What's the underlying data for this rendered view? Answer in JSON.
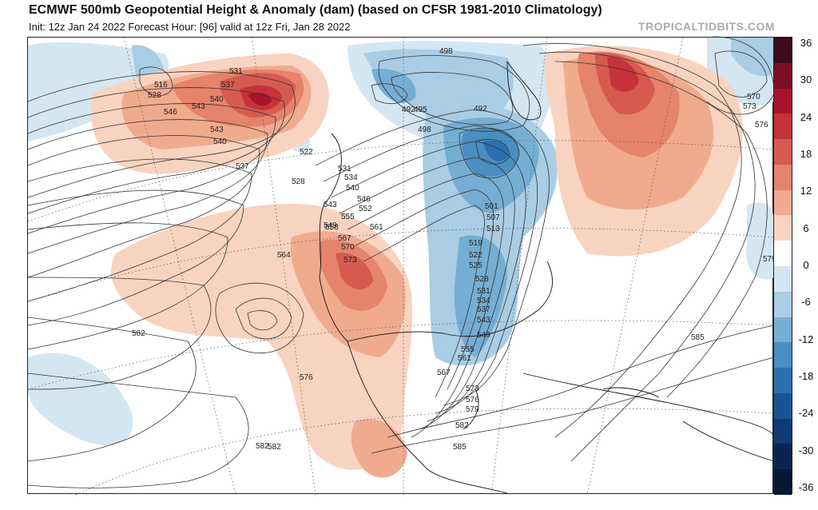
{
  "header": {
    "title": "ECMWF 500mb Geopotential Height & Anomaly (dam) (based on CFSR 1981-2010 Climatology)",
    "subtitle": "Init: 12z Jan 24 2022   Forecast Hour: [96]   valid at 12z Fri, Jan 28 2022",
    "brand": "TROPICALTIDBITS.COM"
  },
  "colorbar": {
    "labels": [
      "36",
      "30",
      "24",
      "18",
      "12",
      "6",
      "0",
      "-6",
      "-12",
      "-18",
      "-24",
      "-30",
      "-36"
    ],
    "colors": [
      "#3d0a1e",
      "#7a0f26",
      "#a9132a",
      "#c5323a",
      "#d65a50",
      "#e5836c",
      "#f0ab8f",
      "#f8d3c0",
      "#ffffff",
      "#d4e6f1",
      "#a9cde4",
      "#75aed3",
      "#4a8ec2",
      "#2c6fae",
      "#1a5394",
      "#0f3a74",
      "#0a2452",
      "#081638"
    ]
  },
  "contour_labels": [
    {
      "t": "516"
    },
    {
      "t": "528"
    },
    {
      "t": "546"
    },
    {
      "t": "543"
    },
    {
      "t": "531"
    },
    {
      "t": "537"
    },
    {
      "t": "540"
    },
    {
      "t": "543"
    },
    {
      "t": "540"
    },
    {
      "t": "537"
    },
    {
      "t": "522"
    },
    {
      "t": "528"
    },
    {
      "t": "531"
    },
    {
      "t": "534"
    },
    {
      "t": "540"
    },
    {
      "t": "546"
    },
    {
      "t": "543"
    },
    {
      "t": "552"
    },
    {
      "t": "555"
    },
    {
      "t": "549"
    },
    {
      "t": "558"
    },
    {
      "t": "561"
    },
    {
      "t": "567"
    },
    {
      "t": "570"
    },
    {
      "t": "564"
    },
    {
      "t": "573"
    },
    {
      "t": "582"
    },
    {
      "t": "576"
    },
    {
      "t": "582"
    },
    {
      "t": "498"
    },
    {
      "t": "492"
    },
    {
      "t": "495"
    },
    {
      "t": "492"
    },
    {
      "t": "498"
    },
    {
      "t": "501"
    },
    {
      "t": "507"
    },
    {
      "t": "513"
    },
    {
      "t": "519"
    },
    {
      "t": "522"
    },
    {
      "t": "525"
    },
    {
      "t": "528"
    },
    {
      "t": "531"
    },
    {
      "t": "534"
    },
    {
      "t": "537"
    },
    {
      "t": "543"
    },
    {
      "t": "549"
    },
    {
      "t": "555"
    },
    {
      "t": "561"
    },
    {
      "t": "567"
    },
    {
      "t": "573"
    },
    {
      "t": "576"
    },
    {
      "t": "579"
    },
    {
      "t": "582"
    },
    {
      "t": "585"
    },
    {
      "t": "582"
    },
    {
      "t": "570"
    },
    {
      "t": "573"
    },
    {
      "t": "576"
    },
    {
      "t": "579"
    },
    {
      "t": "585"
    }
  ]
}
